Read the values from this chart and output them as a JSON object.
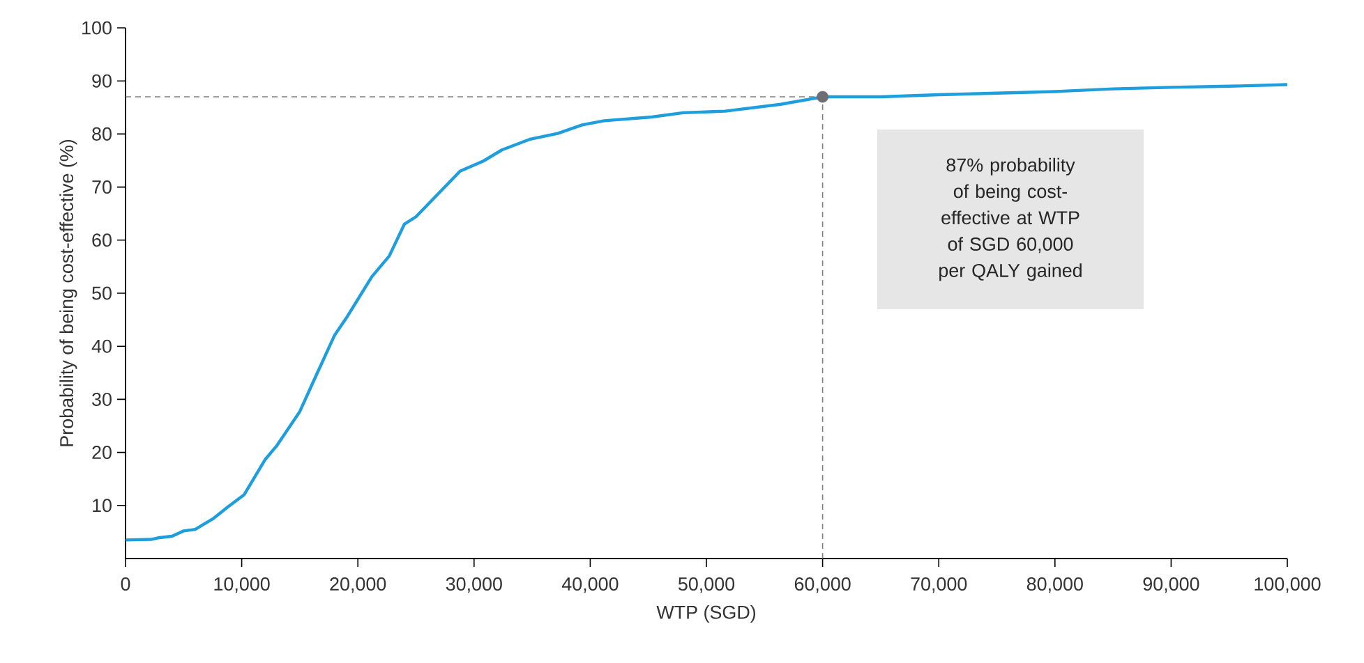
{
  "chart_data": {
    "type": "line",
    "xlabel": "WTP (SGD)",
    "ylabel": "Probability of being cost-effective (%)",
    "xlim": [
      0,
      100000
    ],
    "ylim": [
      0,
      100
    ],
    "xticks": [
      0,
      {
        "value": 10000,
        "label": "10,000"
      },
      {
        "value": 20000,
        "label": "20,000"
      },
      {
        "value": 30000,
        "label": "30,000"
      },
      {
        "value": 40000,
        "label": "40,000"
      },
      {
        "value": 50000,
        "label": "50,000"
      },
      {
        "value": 60000,
        "label": "60,000"
      },
      {
        "value": 70000,
        "label": "70,000"
      },
      {
        "value": 80000,
        "label": "80,000"
      },
      {
        "value": 90000,
        "label": "90,000"
      },
      {
        "value": 100000,
        "label": "100,000"
      }
    ],
    "yticks": [
      10,
      20,
      30,
      40,
      50,
      60,
      70,
      80,
      90,
      100
    ],
    "series": [
      {
        "type": "line",
        "color": "#1f9ede",
        "x": [
          0,
          2200,
          2800,
          4000,
          5000,
          6000,
          7600,
          8800,
          10200,
          12000,
          13000,
          15000,
          16200,
          18000,
          19000,
          21200,
          22700,
          24000,
          25000,
          28800,
          30800,
          32400,
          34800,
          37200,
          39300,
          41200,
          45300,
          48000,
          51600,
          56400,
          60000,
          65000,
          70000,
          75000,
          80000,
          85000,
          90000,
          95000,
          100000
        ],
        "values": [
          3.5,
          3.6,
          3.9,
          4.2,
          5.2,
          5.5,
          7.6,
          9.7,
          12,
          18.6,
          21.2,
          27.7,
          33.5,
          42.1,
          45.3,
          53.1,
          57,
          63,
          64.4,
          73,
          74.9,
          77,
          79,
          80.1,
          81.7,
          82.5,
          83.2,
          84,
          84.3,
          85.6,
          87,
          87,
          87.4,
          87.7,
          88,
          88.5,
          88.8,
          89,
          89.3
        ]
      },
      {
        "type": "scatter",
        "color": "#6d6e71",
        "marker": "circle",
        "x": [
          60000
        ],
        "values": [
          87
        ]
      }
    ],
    "ref_lines": [
      {
        "axis": "y",
        "value": 87,
        "color": "#808080",
        "line_style": "dashed"
      },
      {
        "axis": "x",
        "value": 60000,
        "color": "#808080",
        "line_style": "dashed"
      }
    ],
    "annotations": [
      "87% probability of being cost-effective at WTP of SGD 60,000 per QALY gained"
    ],
    "grid": false
  }
}
